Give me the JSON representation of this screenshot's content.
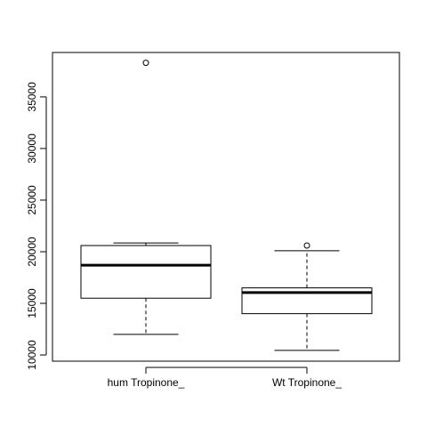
{
  "chart_data": {
    "type": "boxplot",
    "categories": [
      "hum Tropinone_",
      "Wt Tropinone_"
    ],
    "boxes": [
      {
        "name": "hum Tropinone_",
        "whisker_low": 12000,
        "q1": 15500,
        "median": 18700,
        "q3": 20600,
        "whisker_high": 20850,
        "outliers": [
          38300
        ]
      },
      {
        "name": "Wt Tropinone_",
        "whisker_low": 10450,
        "q1": 14000,
        "median": 16050,
        "q3": 16500,
        "whisker_high": 20100,
        "outliers": [
          20600
        ]
      }
    ],
    "y_ticks": [
      "10000",
      "15000",
      "20000",
      "25000",
      "30000",
      "35000"
    ],
    "ylim": [
      9400,
      39300
    ],
    "grid": false,
    "title": "",
    "xlabel": "",
    "ylabel": ""
  }
}
